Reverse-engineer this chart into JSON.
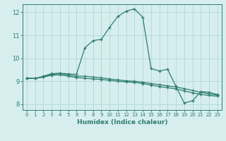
{
  "title": "",
  "xlabel": "Humidex (Indice chaleur)",
  "bg_color": "#d7eeee",
  "line_color": "#2e7d6e",
  "grid_color": "#b0d8d8",
  "xlim": [
    -0.5,
    23.5
  ],
  "ylim": [
    7.75,
    12.35
  ],
  "xticks": [
    0,
    1,
    2,
    3,
    4,
    5,
    6,
    7,
    8,
    9,
    10,
    11,
    12,
    13,
    14,
    15,
    16,
    17,
    18,
    19,
    20,
    21,
    22,
    23
  ],
  "yticks": [
    8,
    9,
    10,
    11,
    12
  ],
  "line1_x": [
    0,
    1,
    2,
    3,
    4,
    5,
    6,
    7,
    8,
    9,
    10,
    11,
    12,
    13,
    14,
    15,
    16,
    17,
    18,
    19,
    20,
    21,
    22,
    23
  ],
  "line1_y": [
    9.13,
    9.12,
    9.22,
    9.33,
    9.35,
    9.32,
    9.3,
    10.45,
    10.77,
    10.82,
    11.35,
    11.82,
    12.05,
    12.15,
    11.78,
    9.55,
    9.45,
    9.52,
    8.78,
    8.05,
    8.15,
    8.55,
    8.52,
    8.42
  ],
  "line2_x": [
    0,
    1,
    2,
    3,
    4,
    5,
    6,
    7,
    8,
    9,
    10,
    11,
    12,
    13,
    14,
    15,
    16,
    17,
    18,
    19,
    20,
    21,
    22,
    23
  ],
  "line2_y": [
    9.13,
    9.12,
    9.2,
    9.3,
    9.33,
    9.28,
    9.22,
    9.22,
    9.18,
    9.15,
    9.1,
    9.06,
    9.02,
    9.0,
    8.96,
    8.9,
    8.85,
    8.8,
    8.75,
    8.68,
    8.6,
    8.52,
    8.45,
    8.4
  ],
  "line3_x": [
    0,
    1,
    2,
    3,
    4,
    5,
    6,
    7,
    8,
    9,
    10,
    11,
    12,
    13,
    14,
    15,
    16,
    17,
    18,
    19,
    20,
    21,
    22,
    23
  ],
  "line3_y": [
    9.13,
    9.12,
    9.18,
    9.26,
    9.28,
    9.22,
    9.16,
    9.13,
    9.1,
    9.08,
    9.04,
    9.0,
    8.97,
    8.95,
    8.9,
    8.83,
    8.77,
    8.72,
    8.67,
    8.58,
    8.5,
    8.43,
    8.38,
    8.35
  ]
}
